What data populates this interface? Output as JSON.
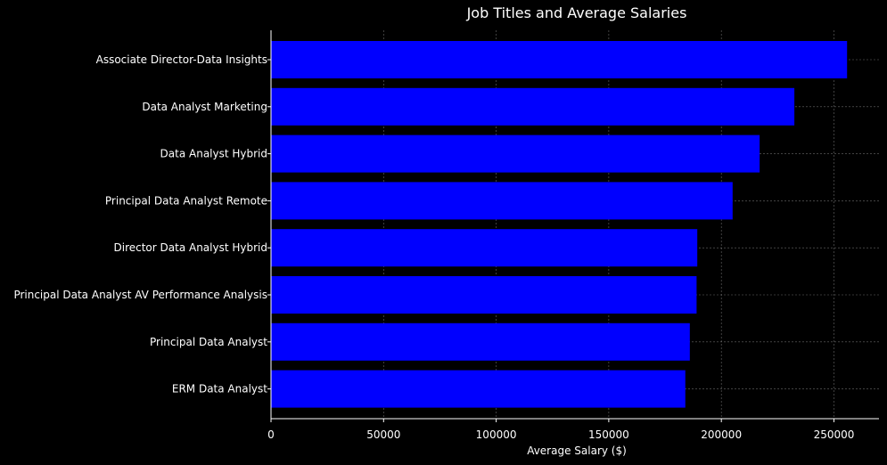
{
  "colors": {
    "background": "#000000",
    "bar": "#0000ff",
    "text": "#ffffff",
    "grid": "#b0b0b0"
  },
  "chart_data": {
    "type": "bar",
    "orientation": "horizontal",
    "title": "Job Titles and Average Salaries",
    "xlabel": "Average Salary ($)",
    "ylabel": "",
    "xlim": [
      0,
      270000
    ],
    "xticks": [
      0,
      50000,
      100000,
      150000,
      200000,
      250000
    ],
    "grid": true,
    "legend": "none",
    "categories": [
      "Associate Director-Data Insights",
      "Data Analyst Marketing",
      "Data Analyst Hybrid",
      "Principal Data Analyst Remote",
      "Director Data Analyst Hybrid",
      "Principal Data Analyst AV Performance Analysis",
      "Principal Data Analyst",
      "ERM Data Analyst"
    ],
    "values": [
      255829,
      232423,
      217000,
      205000,
      189309,
      189000,
      186000,
      184000
    ]
  }
}
